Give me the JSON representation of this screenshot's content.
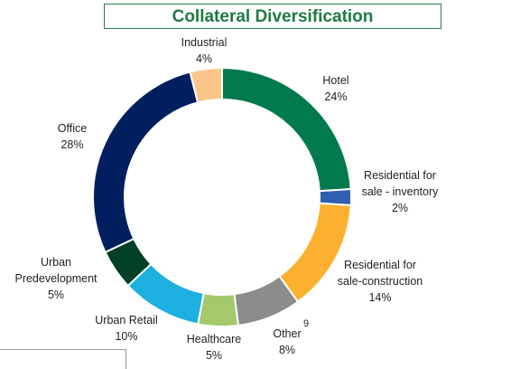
{
  "chart_data": {
    "type": "pie",
    "donut": true,
    "title": "Collateral Diversification",
    "categories": [
      "Hotel",
      "Residential for sale - inventory",
      "Residential for sale-construction",
      "Other",
      "Healthcare",
      "Urban Retail",
      "Urban Predevelopment",
      "Office",
      "Industrial"
    ],
    "values": [
      24,
      2,
      14,
      8,
      5,
      10,
      5,
      28,
      4
    ],
    "value_labels": [
      "24%",
      "2%",
      "14%",
      "8%",
      "5%",
      "10%",
      "5%",
      "28%",
      "4%"
    ],
    "colors": [
      "#007a4d",
      "#2e5fb0",
      "#fbb12f",
      "#8c8c8c",
      "#a5c86b",
      "#1cb0e0",
      "#013f27",
      "#001f5f",
      "#fbc68a"
    ],
    "annotations": [
      "9"
    ]
  }
}
